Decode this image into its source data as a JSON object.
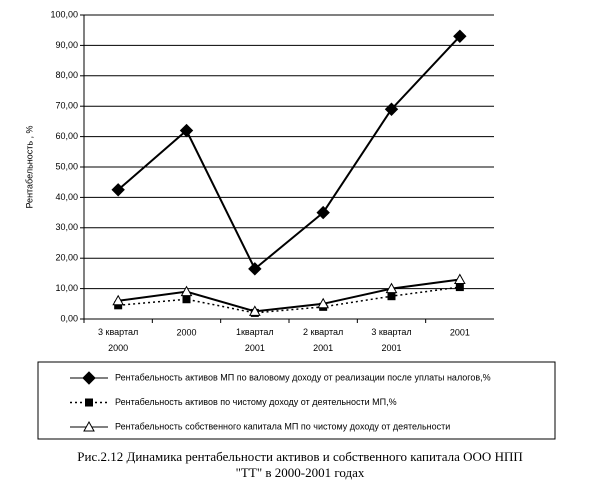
{
  "chart_data": {
    "type": "line",
    "y_label": "Рентабельность , %",
    "categories": [
      "3 квартал\n2000",
      "2000",
      "1квартал\n2001",
      "2 квартал\n2001",
      "3 квартал\n2001",
      "2001"
    ],
    "series": [
      {
        "name": "Рентабельность активов МП по валовому доходу от реализации после уплаты налогов,%",
        "color": "#000000",
        "marker": "diamond",
        "line_style": "solid",
        "values": [
          42.5,
          62,
          16.5,
          35,
          69,
          93
        ]
      },
      {
        "name": "Рентабельность активов по чистому доходу от деятельности МП,%",
        "color": "#000000",
        "marker": "square",
        "line_style": "dotted",
        "values": [
          4.5,
          6.5,
          2,
          4,
          7.5,
          10.5
        ]
      },
      {
        "name": "Рентабельность собственного капитала МП по чистому доходу от деятельности",
        "color": "#000000",
        "marker": "triangle",
        "line_style": "solid",
        "values": [
          6,
          9,
          2.5,
          5,
          10,
          13
        ]
      }
    ],
    "ylim": [
      0,
      100
    ],
    "yticks": [
      {
        "value": 0,
        "label": "0,00"
      },
      {
        "value": 10,
        "label": "10,00"
      },
      {
        "value": 20,
        "label": "20,00"
      },
      {
        "value": 30,
        "label": "30,00"
      },
      {
        "value": 40,
        "label": "40,00"
      },
      {
        "value": 50,
        "label": "50,00"
      },
      {
        "value": 60,
        "label": "60,00"
      },
      {
        "value": 70,
        "label": "70,00"
      },
      {
        "value": 80,
        "label": "80,00"
      },
      {
        "value": 90,
        "label": "90,00"
      },
      {
        "value": 100,
        "label": "100,00"
      }
    ],
    "grid": true,
    "caption": [
      "Рис.2.12 Динамика рентабельности активов и собственного капитала ООО НПП",
      "\"ТТ\" в 2000-2001 годах"
    ]
  }
}
